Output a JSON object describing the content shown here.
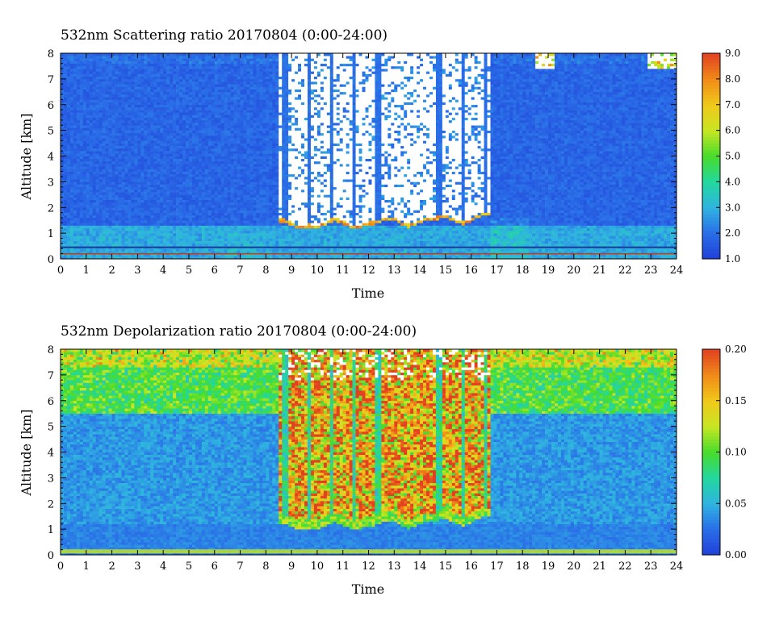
{
  "chart_data": [
    {
      "type": "heatmap",
      "title": "532nm Scattering ratio  20170804 (0:00-24:00)",
      "xlabel": "Time",
      "ylabel": "Altitude [km]",
      "xlim": [
        0,
        24
      ],
      "ylim": [
        0,
        8
      ],
      "x_ticks": [
        "0",
        "1",
        "2",
        "3",
        "4",
        "5",
        "6",
        "7",
        "8",
        "9",
        "10",
        "11",
        "12",
        "13",
        "14",
        "15",
        "16",
        "17",
        "18",
        "19",
        "20",
        "21",
        "22",
        "23",
        "24"
      ],
      "y_ticks": [
        "0",
        "1",
        "2",
        "3",
        "4",
        "5",
        "6",
        "7",
        "8"
      ],
      "colorbar": {
        "range": [
          1.0,
          9.0
        ],
        "ticks": [
          "1.0",
          "2.0",
          "3.0",
          "4.0",
          "5.0",
          "6.0",
          "7.0",
          "8.0",
          "9.0"
        ]
      },
      "features": {
        "background_value": 1.8,
        "boundary_layer_top_km": 1.3,
        "cloud_base_interval_hours": [
          8.5,
          16.7
        ],
        "cloud_base_altitude_km": [
          1.1,
          2.0
        ],
        "saturated_above_cloud_base": true,
        "high_cloud_patches_hours": [
          [
            18.5,
            19.3
          ],
          [
            22.9,
            24.0
          ]
        ],
        "high_cloud_altitude_km": [
          7.4,
          8.0
        ]
      }
    },
    {
      "type": "heatmap",
      "title": "532nm Depolarization ratio  20170804 (0:00-24:00)",
      "xlabel": "Time",
      "ylabel": "Altitude [km]",
      "xlim": [
        0,
        24
      ],
      "ylim": [
        0,
        8
      ],
      "x_ticks": [
        "0",
        "1",
        "2",
        "3",
        "4",
        "5",
        "6",
        "7",
        "8",
        "9",
        "10",
        "11",
        "12",
        "13",
        "14",
        "15",
        "16",
        "17",
        "18",
        "19",
        "20",
        "21",
        "22",
        "23",
        "24"
      ],
      "y_ticks": [
        "0",
        "1",
        "2",
        "3",
        "4",
        "5",
        "6",
        "7",
        "8"
      ],
      "colorbar": {
        "range": [
          0.0,
          0.2
        ],
        "ticks": [
          "0.00",
          "0.05",
          "0.10",
          "0.15",
          "0.20"
        ]
      },
      "features": {
        "background_value": 0.04,
        "high_depolarization_interval_hours": [
          8.5,
          16.7
        ],
        "high_depolarization_altitude_km": [
          1.1,
          8.0
        ],
        "upper_layer_altitude_km": [
          5.5,
          8.0
        ]
      }
    }
  ],
  "colors": {
    "scale": [
      "#2040d8",
      "#2a6ee8",
      "#2fb4e0",
      "#22d89e",
      "#48dc2a",
      "#c8e622",
      "#f0c81a",
      "#f08a18",
      "#e24020"
    ],
    "saturated": "#ffffff",
    "contour": "#cc3a10"
  }
}
